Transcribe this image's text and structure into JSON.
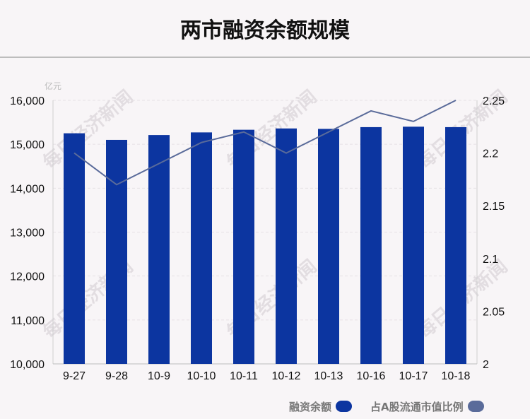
{
  "header": {
    "title": "两市融资余额规模"
  },
  "watermark": "每日经济新闻",
  "colors": {
    "bar": "#0c35a0",
    "line": "#5a6b9a",
    "grid": "#e6e1e5"
  },
  "chart_data": {
    "type": "bar",
    "categories": [
      "9-27",
      "9-28",
      "10-9",
      "10-10",
      "10-11",
      "10-12",
      "10-13",
      "10-16",
      "10-17",
      "10-18"
    ],
    "series": [
      {
        "name": "融资余额",
        "type": "bar",
        "axis": "left",
        "values": [
          15250,
          15100,
          15210,
          15270,
          15330,
          15360,
          15350,
          15390,
          15400,
          15390
        ]
      },
      {
        "name": "占A股流通市值比例",
        "type": "line",
        "axis": "right",
        "values": [
          2.2,
          2.17,
          2.19,
          2.21,
          2.22,
          2.2,
          2.22,
          2.24,
          2.23,
          2.25
        ]
      }
    ],
    "y_left": {
      "unit_label": "亿元",
      "ylim": [
        10000,
        16000
      ],
      "ticks": [
        "10,000",
        "11,000",
        "12,000",
        "13,000",
        "14,000",
        "15,000",
        "16,000"
      ]
    },
    "y_right": {
      "ylim": [
        2,
        2.25
      ],
      "ticks": [
        "2",
        "2.05",
        "2.1",
        "2.15",
        "2.2",
        "2.25"
      ]
    },
    "legend_position": "bottom-right",
    "grid": true
  }
}
